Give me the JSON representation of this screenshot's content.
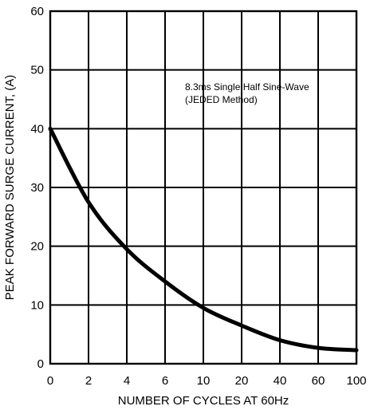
{
  "chart_data": {
    "type": "line",
    "title": "",
    "xlabel": "NUMBER OF CYCLES AT 60Hz",
    "ylabel": "PEAK FORWARD SURGE CURRENT, (A)",
    "x_tick_labels": [
      "0",
      "2",
      "4",
      "6",
      "10",
      "20",
      "40",
      "60",
      "100"
    ],
    "y_tick_labels": [
      "0",
      "10",
      "20",
      "30",
      "40",
      "50",
      "60"
    ],
    "ylim": [
      0,
      60
    ],
    "grid": true,
    "legend": "none",
    "annotation": {
      "line1": "8.3ms Single Half Sine-Wave",
      "line2": "(JEDED Method)"
    },
    "series": [
      {
        "x_tick_index": [
          0,
          1,
          2,
          3,
          4,
          5,
          6,
          7,
          8
        ],
        "values": [
          40,
          27.5,
          19.5,
          14,
          9.5,
          6.5,
          4,
          2.7,
          2.3
        ]
      }
    ]
  }
}
